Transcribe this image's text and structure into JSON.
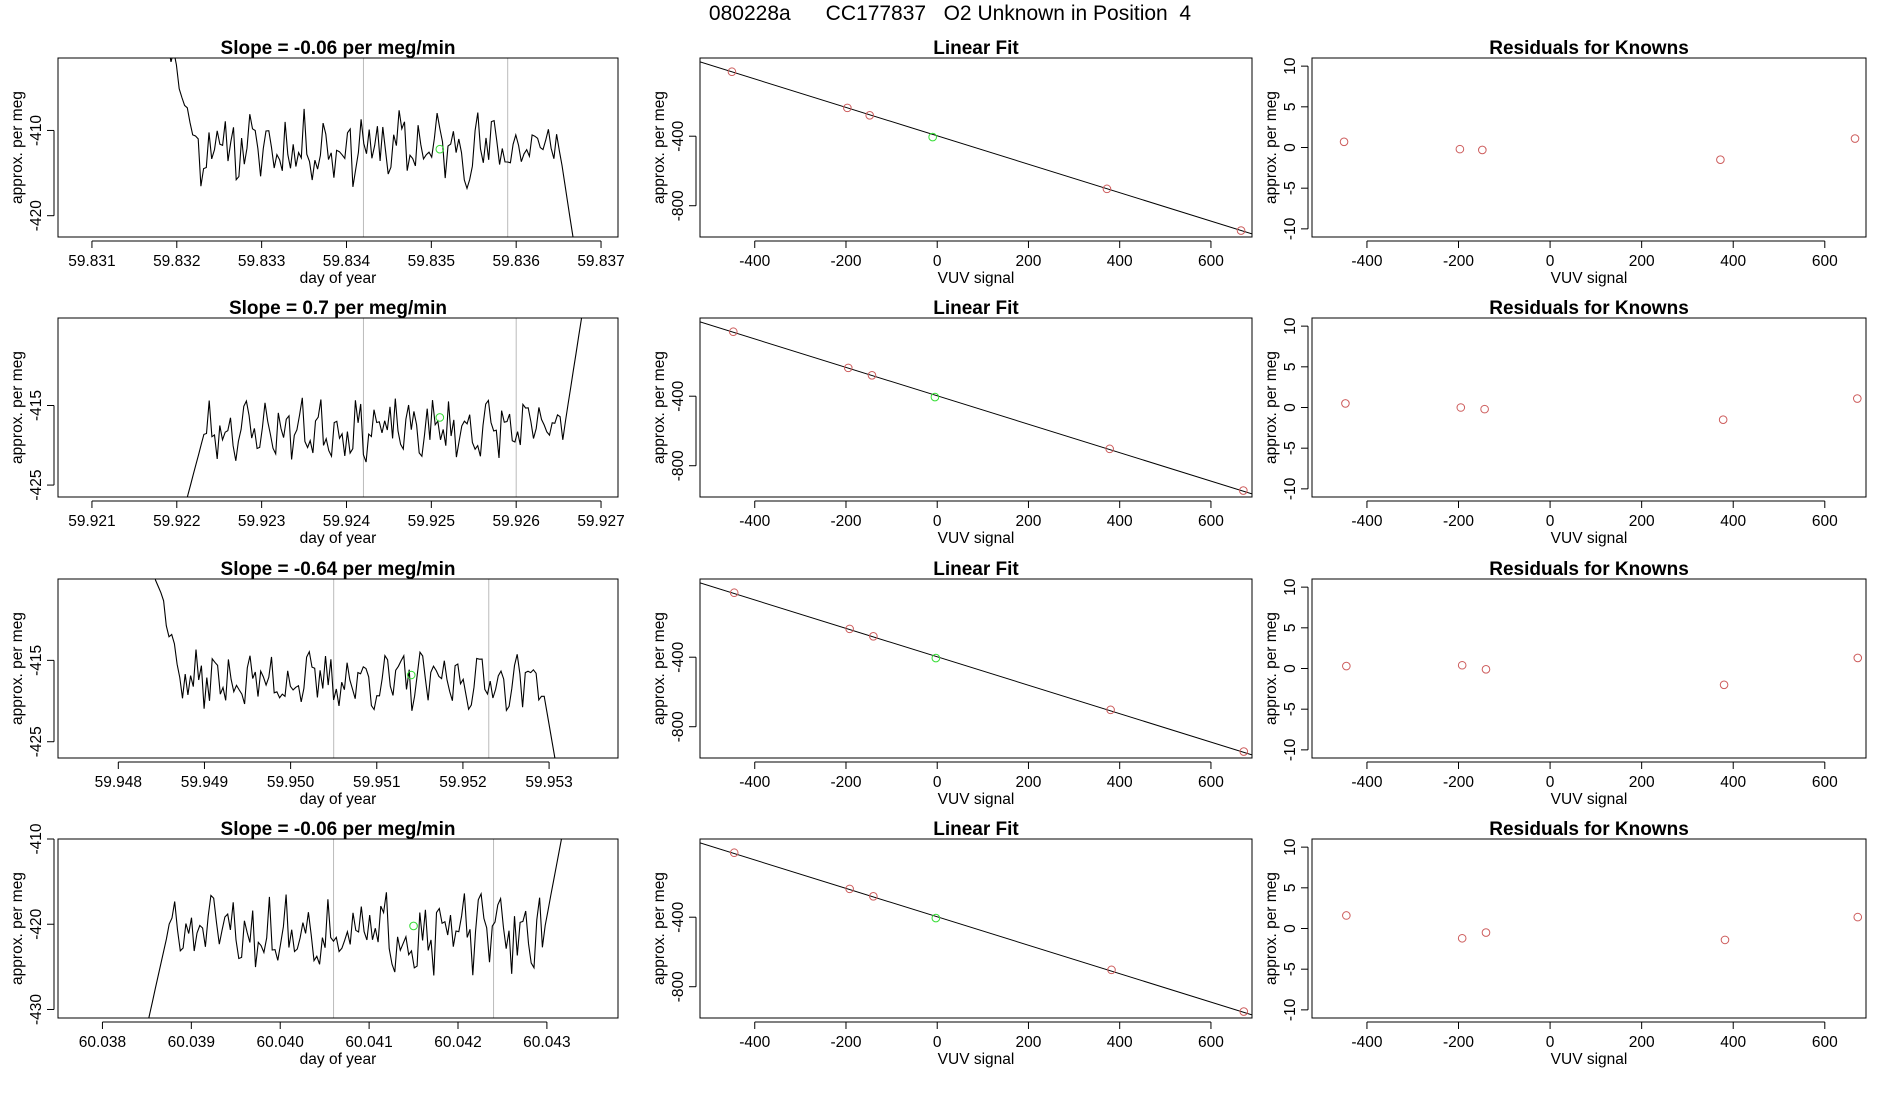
{
  "page": {
    "title": "080228a      CC177837   O2 Unknown in Position  4"
  },
  "colors": {
    "trace": "#000000",
    "known_points": "#cd5c5c",
    "unknown_point": "#33dd33",
    "vertical_lines": "#bbbbbb",
    "axes": "#000000"
  },
  "chart_data": [
    {
      "type": "line",
      "row": 1,
      "panel": "timeseries",
      "title": "Slope =  -0.06  per meg/min",
      "xlabel": "day of year",
      "ylabel": "approx. per meg",
      "xlim": [
        59.8306,
        59.8372
      ],
      "ylim": [
        -422.5,
        -401.5
      ],
      "xticks": [
        59.831,
        59.832,
        59.833,
        59.834,
        59.835,
        59.836,
        59.837
      ],
      "xticklabels": [
        "59.831",
        "59.832",
        "59.833",
        "59.834",
        "59.835",
        "59.836",
        "59.837"
      ],
      "yticks": [
        -410,
        -420
      ],
      "yticklabels": [
        "-410",
        "-420"
      ],
      "vlines": [
        59.8342,
        59.8359
      ],
      "trace": {
        "x_start": 59.8319,
        "x_end": 59.8367,
        "base": -412.0,
        "amp": 3.2,
        "rise_start": true,
        "rise_end": false,
        "seed": 11
      },
      "unknown_point": {
        "x": 59.8351,
        "y": -412.2
      }
    },
    {
      "type": "scatter",
      "row": 1,
      "panel": "linear_fit",
      "title": "Linear Fit",
      "xlabel": "VUV signal",
      "ylabel": "approx. per meg",
      "xlim": [
        -520,
        690
      ],
      "ylim": [
        -980,
        50
      ],
      "xticks": [
        -400,
        -200,
        0,
        200,
        400,
        600
      ],
      "xticklabels": [
        "-400",
        "-200",
        "0",
        "200",
        "400",
        "600"
      ],
      "yticks": [
        -400,
        -800
      ],
      "yticklabels": [
        "-400",
        "-800"
      ],
      "fit_line": {
        "x": [
          -520,
          690
        ],
        "y": [
          27.5,
          -962
        ]
      },
      "known_points": {
        "x": [
          -450,
          -197,
          -148,
          372,
          666
        ],
        "y": [
          -29,
          -237,
          -280,
          -703,
          -943
        ]
      },
      "unknown_point": {
        "x": -10,
        "y": -405
      }
    },
    {
      "type": "scatter",
      "row": 1,
      "panel": "residuals",
      "title": "Residuals for Knowns",
      "xlabel": "VUV signal",
      "ylabel": "approx. per meg",
      "xlim": [
        -520,
        690
      ],
      "ylim": [
        -11,
        11
      ],
      "xticks": [
        -400,
        -200,
        0,
        200,
        400,
        600
      ],
      "xticklabels": [
        "-400",
        "-200",
        "0",
        "200",
        "400",
        "600"
      ],
      "yticks": [
        10,
        5,
        0,
        -5,
        -10
      ],
      "yticklabels": [
        "10",
        "5",
        "0",
        "-5",
        "-10"
      ],
      "points": {
        "x": [
          -450,
          -197,
          -148,
          372,
          666
        ],
        "y": [
          0.7,
          -0.2,
          -0.3,
          -1.5,
          1.1
        ]
      }
    },
    {
      "type": "line",
      "row": 2,
      "panel": "timeseries",
      "title": "Slope =  0.7  per meg/min",
      "xlabel": "day of year",
      "ylabel": "approx. per meg",
      "xlim": [
        59.9206,
        59.9272
      ],
      "ylim": [
        -426.5,
        -404
      ],
      "xticks": [
        59.921,
        59.922,
        59.923,
        59.924,
        59.925,
        59.926,
        59.927
      ],
      "xticklabels": [
        "59.921",
        "59.922",
        "59.923",
        "59.924",
        "59.925",
        "59.926",
        "59.927"
      ],
      "yticks": [
        -415,
        -425
      ],
      "yticklabels": [
        "-415",
        "-425"
      ],
      "vlines": [
        59.9242,
        59.926
      ],
      "trace": {
        "x_start": 59.9221,
        "x_end": 59.9268,
        "base": -418.0,
        "amp": 2.8,
        "rise_start": false,
        "rise_end": true,
        "seed": 23
      },
      "unknown_point": {
        "x": 59.9251,
        "y": -416.5
      }
    },
    {
      "type": "scatter",
      "row": 2,
      "panel": "linear_fit",
      "title": "Linear Fit",
      "xlabel": "VUV signal",
      "ylabel": "approx. per meg",
      "xlim": [
        -520,
        690
      ],
      "ylim": [
        -980,
        50
      ],
      "xticks": [
        -400,
        -200,
        0,
        200,
        400,
        600
      ],
      "xticklabels": [
        "-400",
        "-200",
        "0",
        "200",
        "400",
        "600"
      ],
      "yticks": [
        -400,
        -800
      ],
      "yticklabels": [
        "-400",
        "-800"
      ],
      "fit_line": {
        "x": [
          -520,
          690
        ],
        "y": [
          27.5,
          -962
        ]
      },
      "known_points": {
        "x": [
          -447,
          -195,
          -143,
          378,
          671
        ],
        "y": [
          -29,
          -237,
          -280,
          -703,
          -943
        ]
      },
      "unknown_point": {
        "x": -5,
        "y": -405
      }
    },
    {
      "type": "scatter",
      "row": 2,
      "panel": "residuals",
      "title": "Residuals for Knowns",
      "xlabel": "VUV signal",
      "ylabel": "approx. per meg",
      "xlim": [
        -520,
        690
      ],
      "ylim": [
        -11,
        11
      ],
      "xticks": [
        -400,
        -200,
        0,
        200,
        400,
        600
      ],
      "xticklabels": [
        "-400",
        "-200",
        "0",
        "200",
        "400",
        "600"
      ],
      "yticks": [
        10,
        5,
        0,
        -5,
        -10
      ],
      "yticklabels": [
        "10",
        "5",
        "0",
        "-5",
        "-10"
      ],
      "points": {
        "x": [
          -447,
          -195,
          -143,
          378,
          671
        ],
        "y": [
          0.5,
          0.0,
          -0.2,
          -1.5,
          1.1
        ]
      }
    },
    {
      "type": "line",
      "row": 3,
      "panel": "timeseries",
      "title": "Slope =  -0.64  per meg/min",
      "xlabel": "day of year",
      "ylabel": "approx. per meg",
      "xlim": [
        59.9473,
        59.9538
      ],
      "ylim": [
        -427,
        -405
      ],
      "xticks": [
        59.948,
        59.949,
        59.95,
        59.951,
        59.952,
        59.953
      ],
      "xticklabels": [
        "59.948",
        "59.949",
        "59.950",
        "59.951",
        "59.952",
        "59.953"
      ],
      "yticks": [
        -415,
        -425
      ],
      "yticklabels": [
        "-415",
        "-425"
      ],
      "vlines": [
        59.9505,
        59.9523
      ],
      "trace": {
        "x_start": 59.9484,
        "x_end": 59.9531,
        "base": -417.5,
        "amp": 2.6,
        "rise_start": true,
        "rise_end": false,
        "seed": 37
      },
      "unknown_point": {
        "x": 59.9514,
        "y": -416.8
      }
    },
    {
      "type": "scatter",
      "row": 3,
      "panel": "linear_fit",
      "title": "Linear Fit",
      "xlabel": "VUV signal",
      "ylabel": "approx. per meg",
      "xlim": [
        -520,
        690
      ],
      "ylim": [
        -980,
        50
      ],
      "xticks": [
        -400,
        -200,
        0,
        200,
        400,
        600
      ],
      "xticklabels": [
        "-400",
        "-200",
        "0",
        "200",
        "400",
        "600"
      ],
      "yticks": [
        -400,
        -800
      ],
      "yticklabels": [
        "-400",
        "-800"
      ],
      "fit_line": {
        "x": [
          -520,
          690
        ],
        "y": [
          27.5,
          -962
        ]
      },
      "known_points": {
        "x": [
          -445,
          -192,
          -140,
          380,
          672
        ],
        "y": [
          -29,
          -237,
          -280,
          -703,
          -943
        ]
      },
      "unknown_point": {
        "x": -3,
        "y": -405
      }
    },
    {
      "type": "scatter",
      "row": 3,
      "panel": "residuals",
      "title": "Residuals for Knowns",
      "xlabel": "VUV signal",
      "ylabel": "approx. per meg",
      "xlim": [
        -520,
        690
      ],
      "ylim": [
        -11,
        11
      ],
      "xticks": [
        -400,
        -200,
        0,
        200,
        400,
        600
      ],
      "xticklabels": [
        "-400",
        "-200",
        "0",
        "200",
        "400",
        "600"
      ],
      "yticks": [
        10,
        5,
        0,
        -5,
        -10
      ],
      "yticklabels": [
        "10",
        "5",
        "0",
        "-5",
        "-10"
      ],
      "points": {
        "x": [
          -445,
          -192,
          -140,
          380,
          672
        ],
        "y": [
          0.3,
          0.4,
          -0.1,
          -2.0,
          1.3
        ]
      }
    },
    {
      "type": "line",
      "row": 4,
      "panel": "timeseries",
      "title": "Slope =  -0.06  per meg/min",
      "xlabel": "day of year",
      "ylabel": "approx. per meg",
      "xlim": [
        60.0375,
        60.0438
      ],
      "ylim": [
        -431,
        -410
      ],
      "xticks": [
        60.038,
        60.039,
        60.04,
        60.041,
        60.042,
        60.043
      ],
      "xticklabels": [
        "60.038",
        "60.039",
        "60.040",
        "60.041",
        "60.042",
        "60.043"
      ],
      "yticks": [
        -410,
        -420,
        -430
      ],
      "yticklabels": [
        "-410",
        "-420",
        "-430"
      ],
      "vlines": [
        60.0406,
        60.0424
      ],
      "trace": {
        "x_start": 60.0385,
        "x_end": 60.0432,
        "base": -421.0,
        "amp": 3.4,
        "rise_start": false,
        "rise_end": true,
        "seed": 51
      },
      "unknown_point": {
        "x": 60.0415,
        "y": -420.2
      }
    },
    {
      "type": "scatter",
      "row": 4,
      "panel": "linear_fit",
      "title": "Linear Fit",
      "xlabel": "VUV signal",
      "ylabel": "approx. per meg",
      "xlim": [
        -520,
        690
      ],
      "ylim": [
        -980,
        50
      ],
      "xticks": [
        -400,
        -200,
        0,
        200,
        400,
        600
      ],
      "xticklabels": [
        "-400",
        "-200",
        "0",
        "200",
        "400",
        "600"
      ],
      "yticks": [
        -400,
        -800
      ],
      "yticklabels": [
        "-400",
        "-800"
      ],
      "fit_line": {
        "x": [
          -520,
          690
        ],
        "y": [
          27.5,
          -962
        ]
      },
      "known_points": {
        "x": [
          -445,
          -192,
          -140,
          382,
          672
        ],
        "y": [
          -29,
          -237,
          -280,
          -703,
          -943
        ]
      },
      "unknown_point": {
        "x": -3,
        "y": -405
      }
    },
    {
      "type": "scatter",
      "row": 4,
      "panel": "residuals",
      "title": "Residuals for Knowns",
      "xlabel": "VUV signal",
      "ylabel": "approx. per meg",
      "xlim": [
        -520,
        690
      ],
      "ylim": [
        -11,
        11
      ],
      "xticks": [
        -400,
        -200,
        0,
        200,
        400,
        600
      ],
      "xticklabels": [
        "-400",
        "-200",
        "0",
        "200",
        "400",
        "600"
      ],
      "yticks": [
        10,
        5,
        0,
        -5,
        -10
      ],
      "yticklabels": [
        "10",
        "5",
        "0",
        "-5",
        "-10"
      ],
      "points": {
        "x": [
          -445,
          -192,
          -140,
          382,
          672
        ],
        "y": [
          1.6,
          -1.2,
          -0.5,
          -1.4,
          1.4
        ]
      }
    }
  ]
}
